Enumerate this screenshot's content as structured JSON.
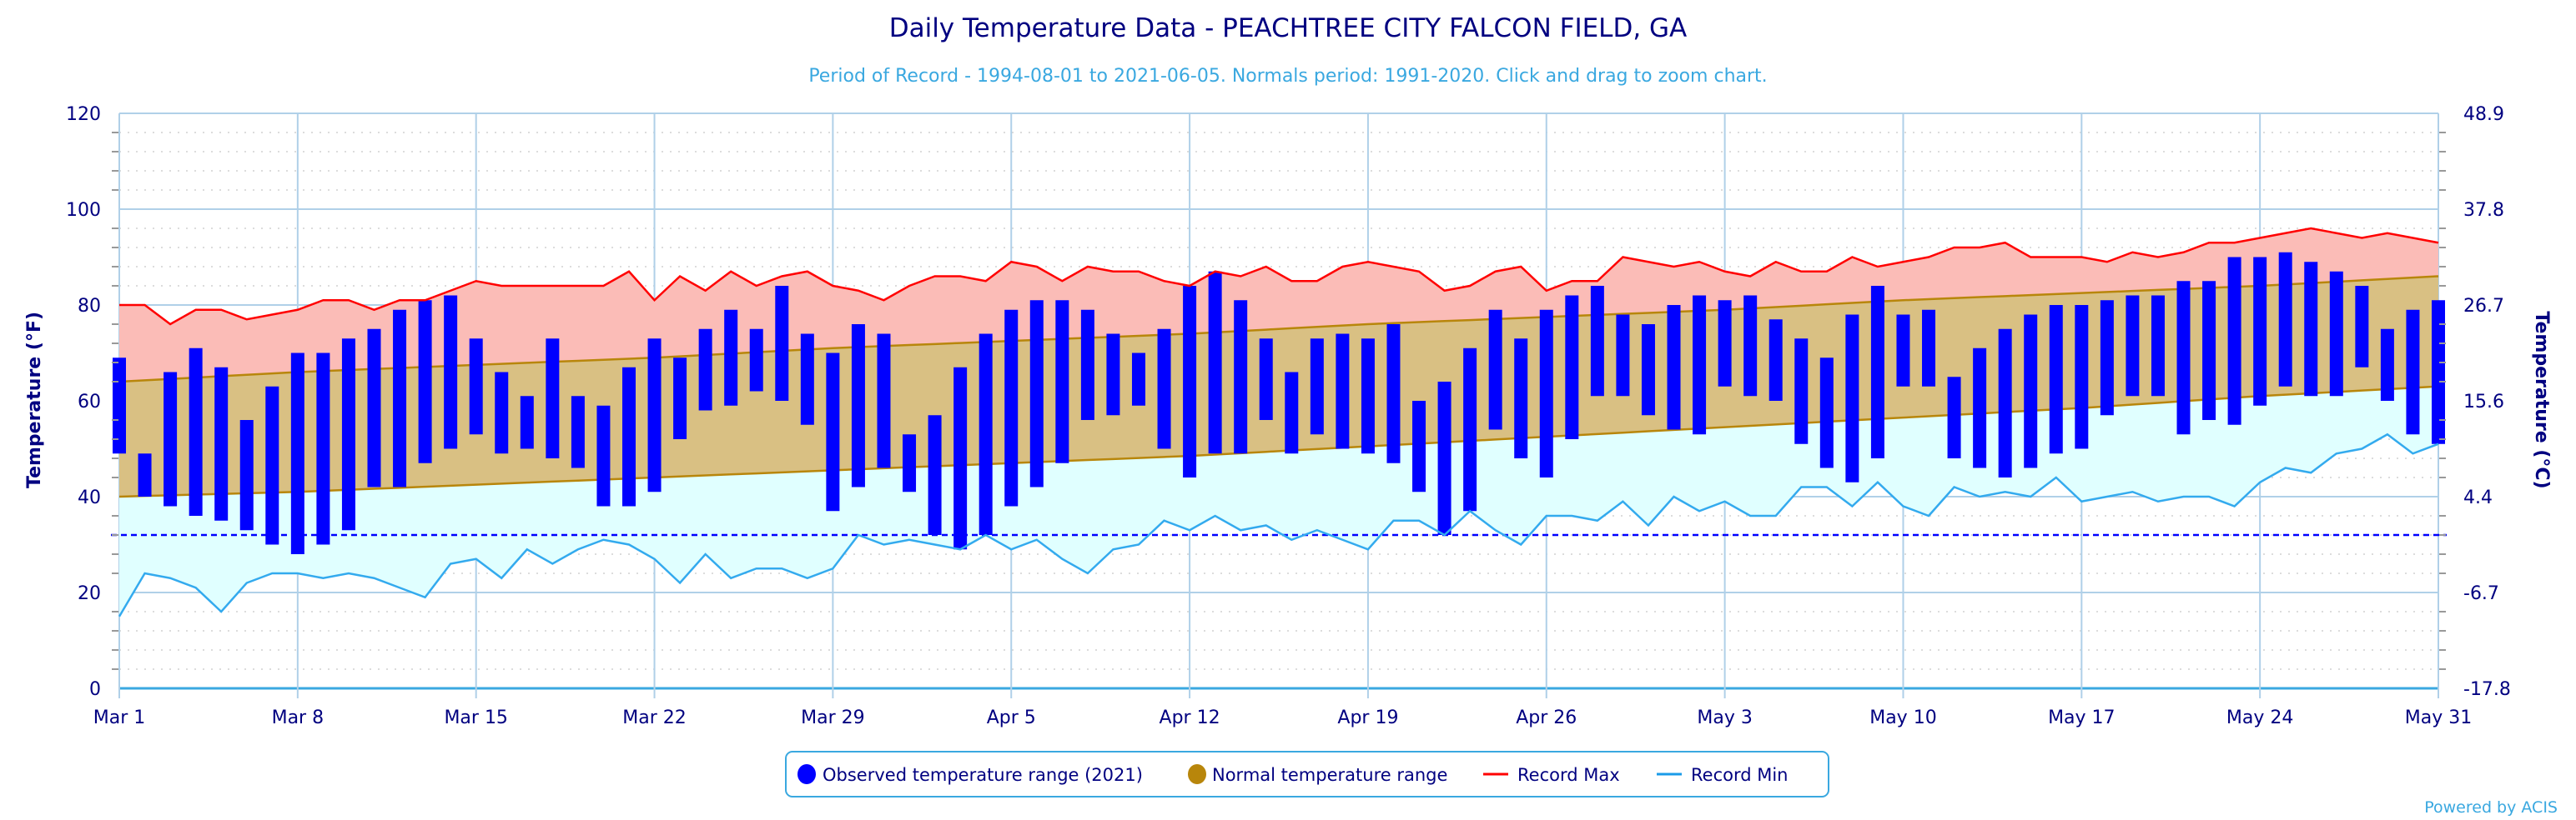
{
  "chart_data": {
    "type": "bar",
    "title": "Daily Temperature Data - PEACHTREE CITY FALCON FIELD, GA",
    "subtitle": "Period of Record - 1994-08-01 to 2021-06-05. Normals period: 1991-2020. Click and drag to zoom chart.",
    "ylabel": "Temperature (°F)",
    "ylabel_right": "Temperature (°C)",
    "ylim": [
      0,
      120
    ],
    "y_ticks": [
      "0",
      "20",
      "40",
      "60",
      "80",
      "100",
      "120"
    ],
    "y_ticks_right": [
      "-17.8",
      "-6.7",
      "4.4",
      "15.6",
      "26.7",
      "37.8",
      "48.9"
    ],
    "x_tick_labels": [
      "Mar 1",
      "Mar 8",
      "Mar 15",
      "Mar 22",
      "Mar 29",
      "Apr 5",
      "Apr 12",
      "Apr 19",
      "Apr 26",
      "May 3",
      "May 10",
      "May 17",
      "May 24",
      "May 31"
    ],
    "x_tick_days": [
      0,
      7,
      14,
      21,
      28,
      35,
      42,
      49,
      56,
      63,
      70,
      77,
      84,
      91
    ],
    "freezing_line": 32,
    "grid": true,
    "legend_position": "bottom-center",
    "series": [
      {
        "name": "Observed temperature range (2021)",
        "color": "#0000ff",
        "high": [
          69,
          49,
          66,
          71,
          67,
          56,
          63,
          70,
          70,
          73,
          75,
          79,
          81,
          82,
          73,
          66,
          61,
          73,
          61,
          59,
          67,
          73,
          69,
          75,
          79,
          75,
          84,
          74,
          70,
          76,
          74,
          53,
          57,
          67,
          74,
          79,
          81,
          81,
          79,
          74,
          70,
          75,
          84,
          87,
          81,
          73,
          66,
          73,
          74,
          73,
          76,
          60,
          64,
          71,
          79,
          73,
          79,
          82,
          84,
          78,
          76,
          80,
          82,
          81,
          82,
          77,
          73,
          69,
          78,
          84,
          78,
          79,
          65,
          71,
          75,
          78,
          80,
          80,
          81,
          82,
          82,
          85,
          85,
          90,
          90,
          91,
          89,
          87,
          84,
          75,
          79,
          81
        ],
        "low": [
          49,
          40,
          38,
          36,
          35,
          33,
          30,
          28,
          30,
          33,
          42,
          42,
          47,
          50,
          53,
          49,
          50,
          48,
          46,
          38,
          38,
          41,
          52,
          58,
          59,
          62,
          60,
          55,
          37,
          42,
          46,
          41,
          32,
          29,
          32,
          38,
          42,
          47,
          56,
          57,
          59,
          50,
          44,
          49,
          49,
          56,
          49,
          53,
          50,
          49,
          47,
          41,
          32,
          37,
          54,
          48,
          44,
          52,
          61,
          61,
          57,
          54,
          53,
          63,
          61,
          60,
          51,
          46,
          43,
          48,
          63,
          63,
          48,
          46,
          44,
          46,
          49,
          50,
          57,
          61,
          61,
          53,
          56,
          55,
          59,
          63,
          61,
          61,
          67,
          60,
          53,
          51
        ]
      },
      {
        "name": "Normal temperature range",
        "color": "#b8860b",
        "days": [
          0,
          7,
          14,
          21,
          28,
          35,
          42,
          49,
          56,
          63,
          70,
          77,
          84,
          91
        ],
        "high": [
          64,
          66,
          67.5,
          69,
          71,
          72.5,
          74,
          76,
          77.5,
          79,
          81,
          82.5,
          84,
          86
        ],
        "low": [
          40,
          41,
          42.5,
          44,
          45.5,
          47,
          48.5,
          50.5,
          52.5,
          54.5,
          56.5,
          58.5,
          61,
          63
        ]
      },
      {
        "name": "Record Max",
        "color": "#ff0000",
        "values": [
          80,
          80,
          76,
          79,
          79,
          77,
          78,
          79,
          81,
          81,
          79,
          81,
          81,
          83,
          85,
          84,
          84,
          84,
          84,
          84,
          87,
          81,
          86,
          83,
          87,
          84,
          86,
          87,
          84,
          83,
          81,
          84,
          86,
          86,
          85,
          89,
          88,
          85,
          88,
          87,
          87,
          85,
          84,
          87,
          86,
          88,
          85,
          85,
          88,
          89,
          88,
          87,
          83,
          84,
          87,
          88,
          83,
          85,
          85,
          90,
          89,
          88,
          89,
          87,
          86,
          89,
          87,
          87,
          90,
          88,
          89,
          90,
          92,
          92,
          93,
          90,
          90,
          90,
          89,
          91,
          90,
          91,
          93,
          93,
          94,
          95,
          96,
          95,
          94,
          95,
          94,
          93
        ]
      },
      {
        "name": "Record Min",
        "color": "#33aaee",
        "values": [
          15,
          24,
          23,
          21,
          16,
          22,
          24,
          24,
          23,
          24,
          23,
          21,
          19,
          26,
          27,
          23,
          29,
          26,
          29,
          31,
          30,
          27,
          22,
          28,
          23,
          25,
          25,
          23,
          25,
          32,
          30,
          31,
          30,
          29,
          32,
          29,
          31,
          27,
          24,
          29,
          30,
          35,
          33,
          36,
          33,
          34,
          31,
          33,
          31,
          29,
          35,
          35,
          32,
          37,
          33,
          30,
          36,
          36,
          35,
          39,
          34,
          40,
          37,
          39,
          36,
          36,
          42,
          42,
          38,
          43,
          38,
          36,
          42,
          40,
          41,
          40,
          44,
          39,
          40,
          41,
          39,
          40,
          40,
          38,
          43,
          46,
          45,
          49,
          50,
          53,
          49,
          51
        ]
      }
    ]
  },
  "credit": "Powered by ACIS"
}
